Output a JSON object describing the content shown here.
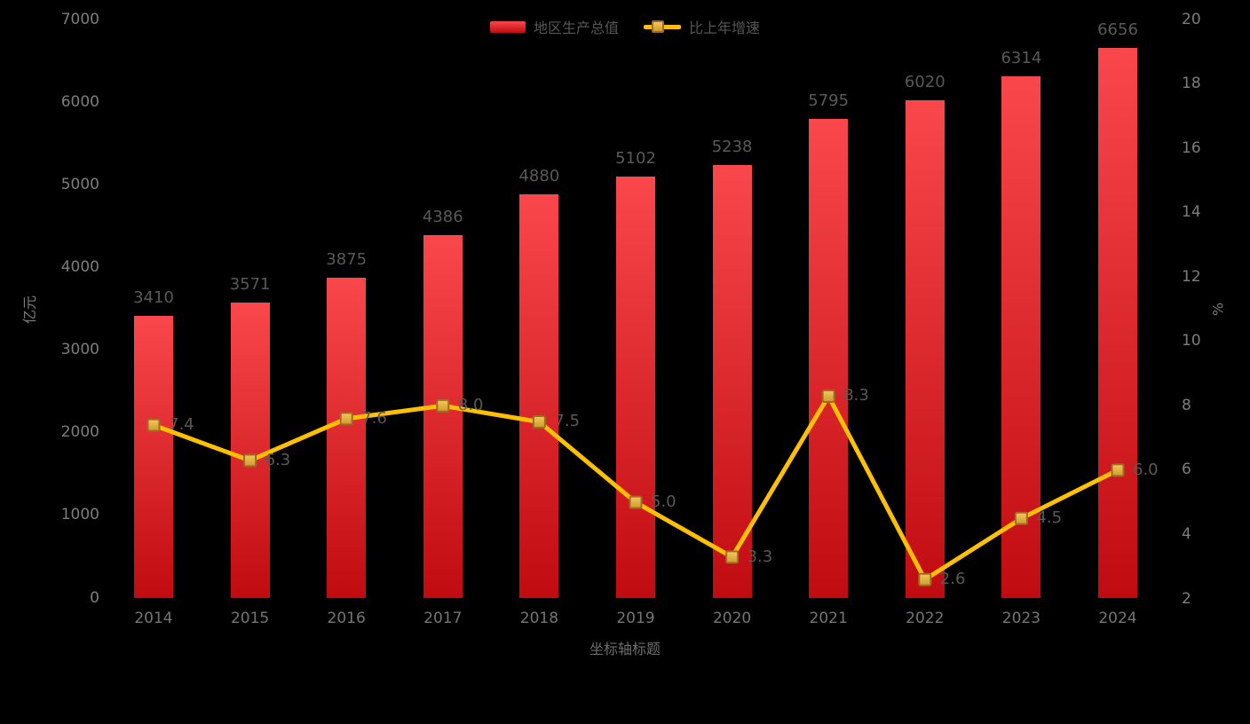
{
  "chart_data": {
    "type": "bar",
    "combo": "bar+line dual axis",
    "categories": [
      "2014",
      "2015",
      "2016",
      "2017",
      "2018",
      "2019",
      "2020",
      "2021",
      "2022",
      "2023",
      "2024"
    ],
    "series": [
      {
        "name": "地区生产总值",
        "type": "bar",
        "axis": "left",
        "values": [
          3410,
          3571,
          3875,
          4386,
          4880,
          5102,
          5238,
          5795,
          6020,
          6314,
          6656
        ],
        "color_top": "#fa474b",
        "color_bottom": "#c00c10"
      },
      {
        "name": "比上年增速",
        "type": "line",
        "axis": "right",
        "values": [
          7.4,
          6.3,
          7.6,
          8.0,
          7.5,
          5.0,
          3.3,
          8.3,
          2.6,
          4.5,
          6.0
        ],
        "labels": [
          "7.4",
          "6.3",
          "7.6",
          "8.0",
          "7.5",
          "5.0",
          "3.3",
          "8.3",
          "2.6",
          "4.5",
          "6.0"
        ],
        "line_color": "#ffc000",
        "marker_fill_top": "#f2c95a",
        "marker_fill_bottom": "#cf9a2e",
        "marker_border": "#9e6b26"
      }
    ],
    "left_axis": {
      "title": "亿元",
      "min": 0,
      "max": 7000,
      "ticks": [
        0,
        1000,
        2000,
        3000,
        4000,
        5000,
        6000,
        7000
      ]
    },
    "right_axis": {
      "title": "%",
      "min": 2,
      "max": 20,
      "ticks": [
        2,
        4,
        6,
        8,
        10,
        12,
        14,
        16,
        18,
        20
      ]
    },
    "x_axis": {
      "title": "坐标轴标题"
    },
    "legend": {
      "bar_label": "地区生产总值",
      "line_label": "比上年增速"
    },
    "colors": {
      "background": "#000000",
      "tick_text": "#7d7d7d",
      "data_label_text": "#595959",
      "legend_text": "#565656"
    },
    "grid": false,
    "legend_position": "top-center"
  }
}
